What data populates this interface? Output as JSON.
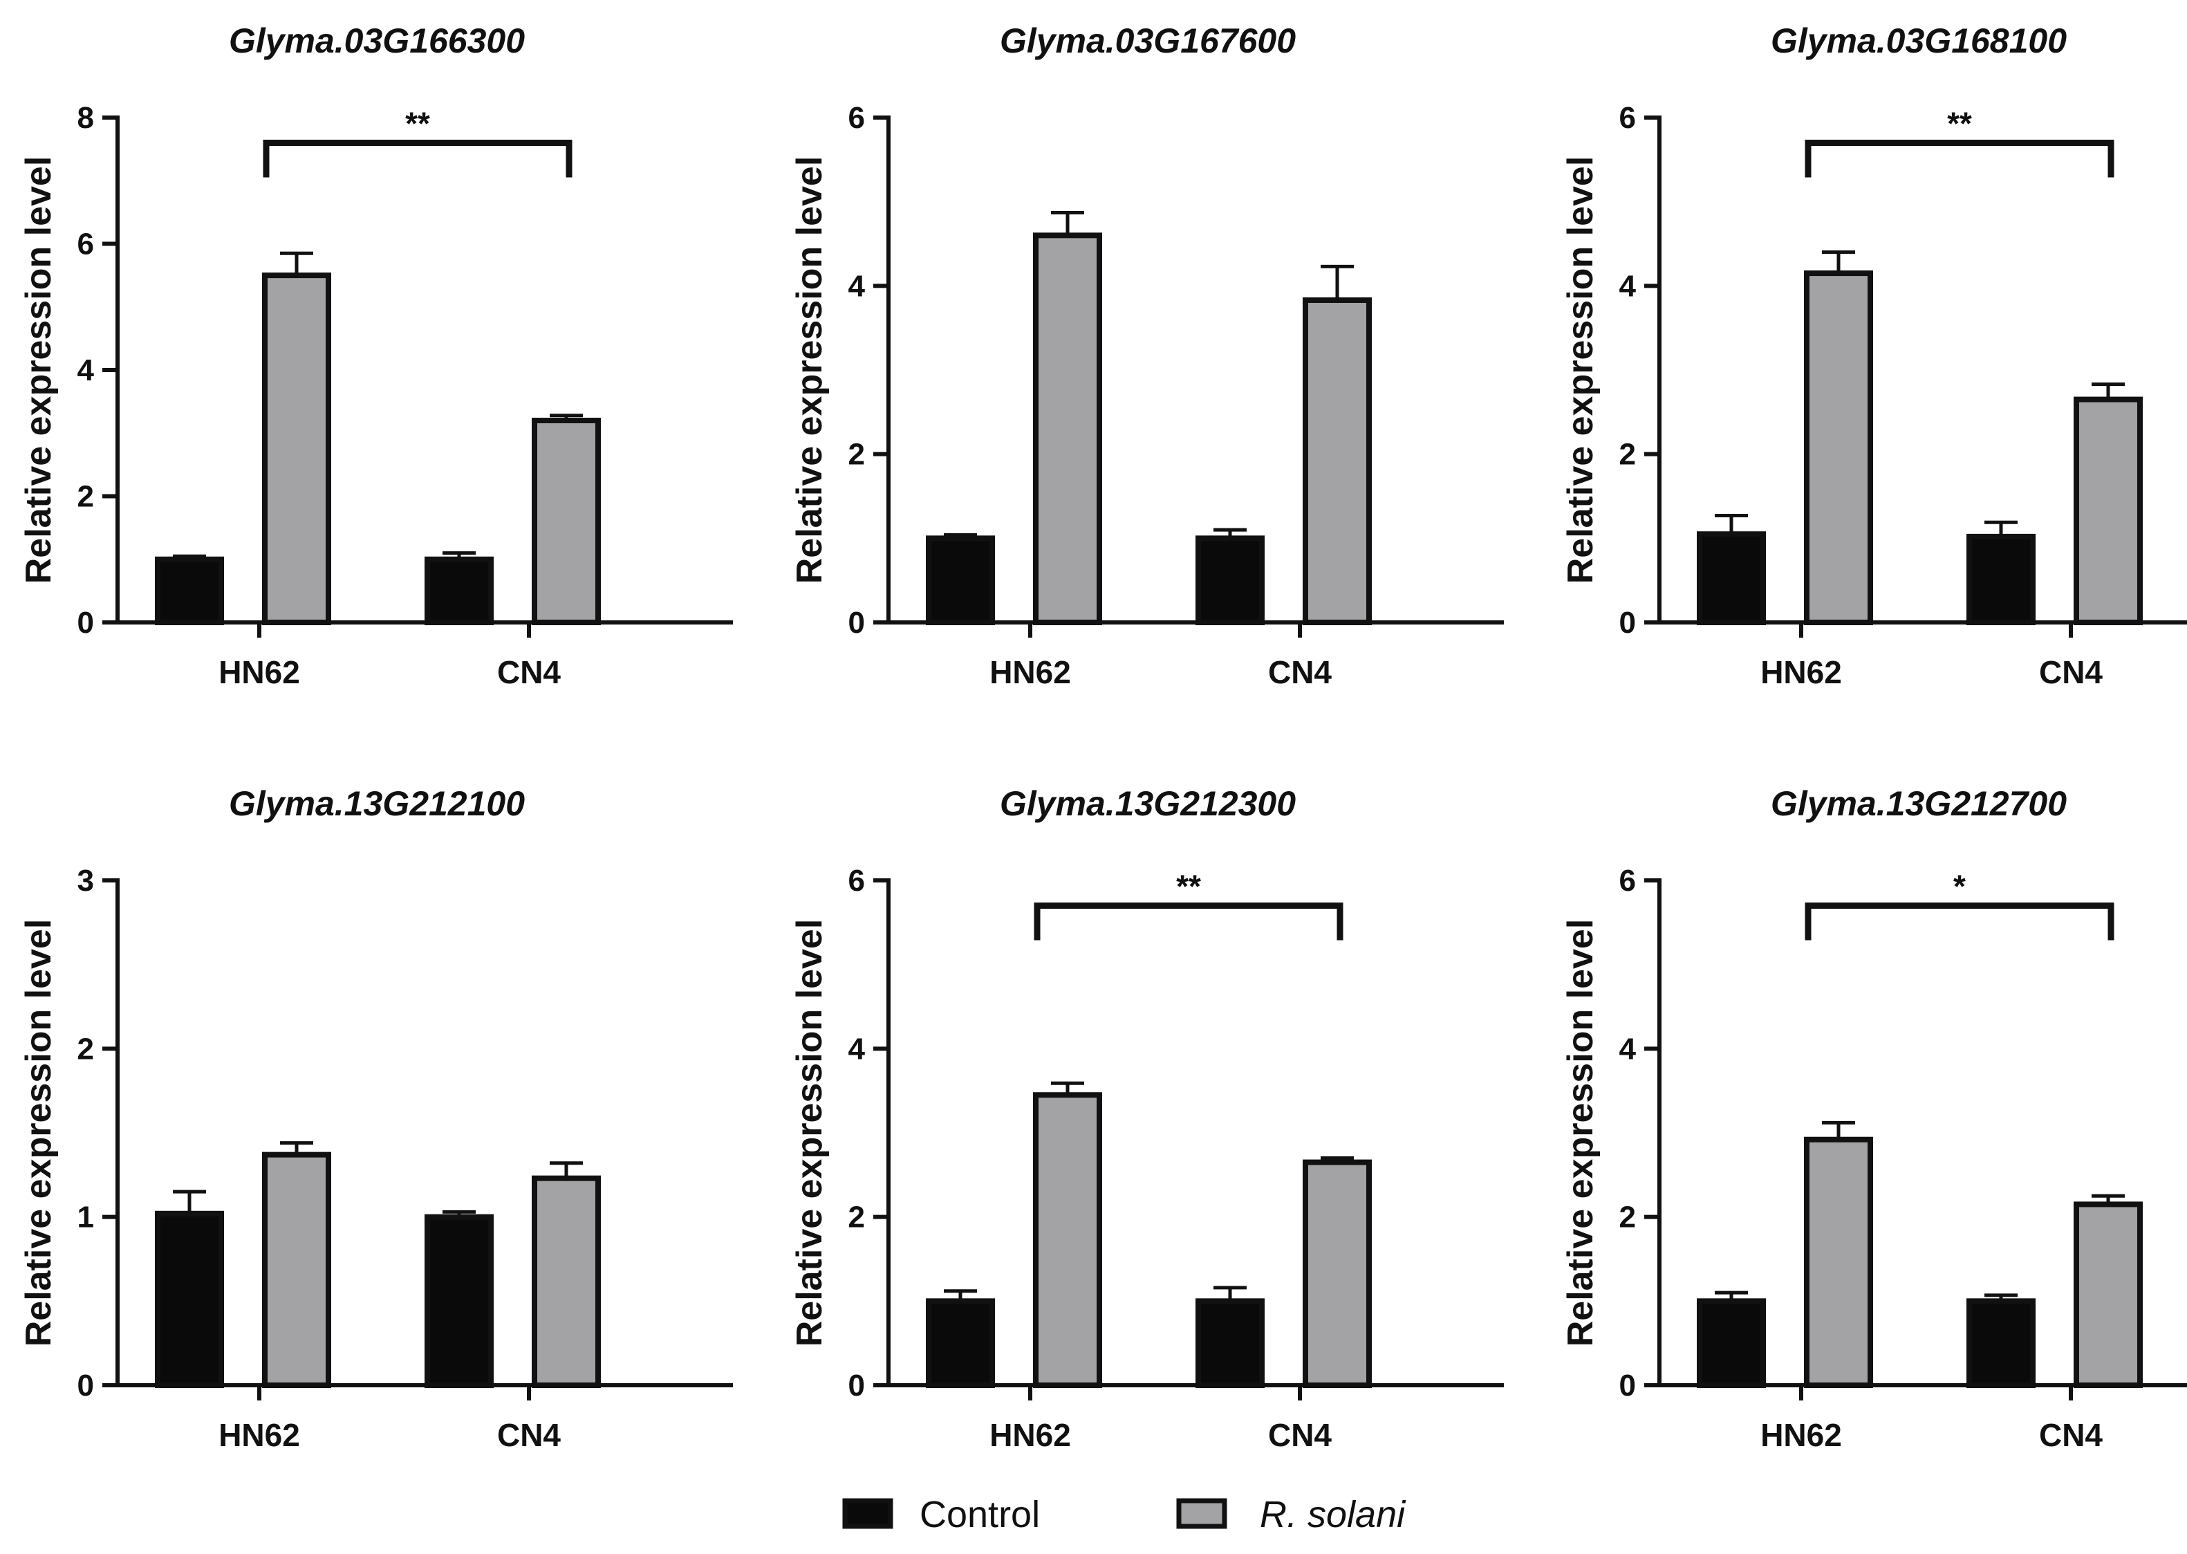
{
  "legend": {
    "control_label": "Control",
    "treatment_label": "R. solani"
  },
  "colors": {
    "control": "#0a0a0a",
    "treatment": "#a3a3a6",
    "outline": "#111111"
  },
  "chart_data": [
    {
      "type": "bar",
      "title": "Glyma.03G166300",
      "ylabel": "Relative expression level",
      "ylim": [
        0,
        8
      ],
      "yticks": [
        0,
        2,
        4,
        6,
        8
      ],
      "categories": [
        "HN62",
        "CN4"
      ],
      "series": [
        {
          "name": "Control",
          "values": [
            1.0,
            1.0
          ],
          "errors": [
            0.05,
            0.1
          ]
        },
        {
          "name": "R. solani",
          "values": [
            5.5,
            3.2
          ],
          "errors": [
            0.35,
            0.08
          ]
        }
      ],
      "annotation": {
        "text": "**",
        "from_category": 0,
        "to_category": 1,
        "y": 7.6
      }
    },
    {
      "type": "bar",
      "title": "Glyma.03G167600",
      "ylabel": "Relative expression level",
      "ylim": [
        0,
        6
      ],
      "yticks": [
        0,
        2,
        4,
        6
      ],
      "categories": [
        "HN62",
        "CN4"
      ],
      "series": [
        {
          "name": "Control",
          "values": [
            1.0,
            1.0
          ],
          "errors": [
            0.04,
            0.1
          ]
        },
        {
          "name": "R. solani",
          "values": [
            4.6,
            3.83
          ],
          "errors": [
            0.27,
            0.4
          ]
        }
      ]
    },
    {
      "type": "bar",
      "title": "Glyma.03G168100",
      "ylabel": "Relative expression level",
      "ylim": [
        0,
        6
      ],
      "yticks": [
        0,
        2,
        4,
        6
      ],
      "categories": [
        "HN62",
        "CN4"
      ],
      "series": [
        {
          "name": "Control",
          "values": [
            1.05,
            1.02
          ],
          "errors": [
            0.22,
            0.17
          ]
        },
        {
          "name": "R. solani",
          "values": [
            4.15,
            2.65
          ],
          "errors": [
            0.25,
            0.18
          ]
        }
      ],
      "annotation": {
        "text": "**",
        "from_category": 0,
        "to_category": 1,
        "y": 5.7
      }
    },
    {
      "type": "bar",
      "title": "Glyma.13G212100",
      "ylabel": "Relative expression level",
      "ylim": [
        0,
        3
      ],
      "yticks": [
        0,
        1,
        2,
        3
      ],
      "categories": [
        "HN62",
        "CN4"
      ],
      "series": [
        {
          "name": "Control",
          "values": [
            1.02,
            1.0
          ],
          "errors": [
            0.13,
            0.03
          ]
        },
        {
          "name": "R. solani",
          "values": [
            1.37,
            1.23
          ],
          "errors": [
            0.07,
            0.09
          ]
        }
      ]
    },
    {
      "type": "bar",
      "title": "Glyma.13G212300",
      "ylabel": "Relative expression level",
      "ylim": [
        0,
        6
      ],
      "yticks": [
        0,
        2,
        4,
        6
      ],
      "categories": [
        "HN62",
        "CN4"
      ],
      "series": [
        {
          "name": "Control",
          "values": [
            1.0,
            1.0
          ],
          "errors": [
            0.12,
            0.16
          ]
        },
        {
          "name": "R. solani",
          "values": [
            3.45,
            2.65
          ],
          "errors": [
            0.14,
            0.05
          ]
        }
      ],
      "annotation": {
        "text": "**",
        "from_category": 0,
        "to_category": 1,
        "y": 5.7
      }
    },
    {
      "type": "bar",
      "title": "Glyma.13G212700",
      "ylabel": "Relative expression level",
      "ylim": [
        0,
        6
      ],
      "yticks": [
        0,
        2,
        4,
        6
      ],
      "categories": [
        "HN62",
        "CN4"
      ],
      "series": [
        {
          "name": "Control",
          "values": [
            1.0,
            1.0
          ],
          "errors": [
            0.1,
            0.07
          ]
        },
        {
          "name": "R. solani",
          "values": [
            2.92,
            2.15
          ],
          "errors": [
            0.2,
            0.1
          ]
        }
      ],
      "annotation": {
        "text": "*",
        "from_category": 0,
        "to_category": 1,
        "y": 5.7
      }
    }
  ]
}
